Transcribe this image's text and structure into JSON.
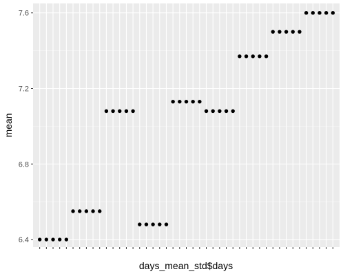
{
  "chart_data": {
    "type": "scatter",
    "xlabel": "days_mean_std$days",
    "ylabel": "mean",
    "x_scale": "discrete",
    "x_tick_labels_note": "tick labels overprinted/illegible in source",
    "y_ticks": [
      "6.4",
      "6.8",
      "7.2",
      "7.6"
    ],
    "y_tick_values": [
      6.4,
      6.8,
      7.2,
      7.6
    ],
    "ylim": [
      6.36,
      7.65
    ],
    "grid": true,
    "panel_background": "#ebebeb",
    "grid_major_color": "#ffffff",
    "point_color": "#000000",
    "values": [
      6.4,
      6.4,
      6.4,
      6.4,
      6.4,
      6.55,
      6.55,
      6.55,
      6.55,
      6.55,
      7.08,
      7.08,
      7.08,
      7.08,
      7.08,
      6.48,
      6.48,
      6.48,
      6.48,
      6.48,
      7.13,
      7.13,
      7.13,
      7.13,
      7.13,
      7.08,
      7.08,
      7.08,
      7.08,
      7.08,
      7.37,
      7.37,
      7.37,
      7.37,
      7.37,
      7.5,
      7.5,
      7.5,
      7.5,
      7.5,
      7.6,
      7.6,
      7.6,
      7.6,
      7.6
    ],
    "n_categories": 45
  }
}
